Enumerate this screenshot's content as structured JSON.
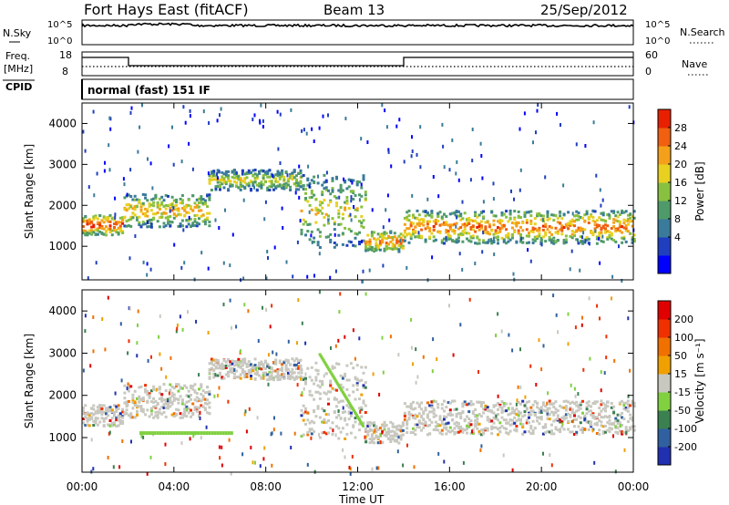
{
  "header": {
    "title": "Fort Hays East (fitACF)",
    "beam": "Beam 13",
    "date": "25/Sep/2012"
  },
  "status_panels": {
    "nsky_label": "N.Sky",
    "nsearch_label": "N.Search",
    "nsky_ticks": [
      "10^5",
      "10^0"
    ],
    "nsearch_ticks": [
      "10^5",
      "10^0"
    ],
    "freq_label": "Freq.",
    "freq_unit": "[MHz]",
    "freq_ticks": [
      "18",
      "8"
    ],
    "nave_label": "Nave",
    "nave_ticks": [
      "60",
      "0"
    ],
    "cpid_label": "CPID",
    "cpid_text": "normal (fast) 151 IF"
  },
  "chart_data": [
    {
      "type": "heatmap",
      "name": "power",
      "ylabel": "Slant Range [km]",
      "xlabel": "Time UT",
      "x_ticks": [
        "00:00",
        "04:00",
        "08:00",
        "12:00",
        "16:00",
        "20:00",
        "00:00"
      ],
      "x_range_hours": [
        0,
        24
      ],
      "y_ticks": [
        1000,
        2000,
        3000,
        4000
      ],
      "ylim": [
        180,
        4500
      ],
      "colorbar_label": "Power [dB]",
      "colorbar_ticks": [
        "28",
        "24",
        "20",
        "16",
        "12",
        "8",
        "4"
      ],
      "colors": [
        "#0000ff",
        "#1f3fbf",
        "#3a7a9a",
        "#4f9a6a",
        "#88c040",
        "#e8d020",
        "#f5a01a",
        "#f06010",
        "#e82000"
      ],
      "bands": [
        {
          "t": [
            0,
            1.8
          ],
          "r": [
            1300,
            1800
          ],
          "level": 8
        },
        {
          "t": [
            1.8,
            5.5
          ],
          "r": [
            1500,
            2300
          ],
          "level": 6
        },
        {
          "t": [
            5.5,
            9.5
          ],
          "r": [
            2400,
            2900
          ],
          "level": 5
        },
        {
          "t": [
            9.5,
            12.3
          ],
          "r": [
            1000,
            2800
          ],
          "level": 5
        },
        {
          "t": [
            12.3,
            14
          ],
          "r": [
            900,
            1400
          ],
          "level": 7
        },
        {
          "t": [
            14,
            24
          ],
          "r": [
            1100,
            1900
          ],
          "level": 7
        }
      ]
    },
    {
      "type": "heatmap",
      "name": "velocity",
      "ylabel": "Slant Range [km]",
      "xlabel": "Time UT",
      "x_ticks": [
        "00:00",
        "04:00",
        "08:00",
        "12:00",
        "16:00",
        "20:00",
        "00:00"
      ],
      "x_range_hours": [
        0,
        24
      ],
      "y_ticks": [
        1000,
        2000,
        3000,
        4000
      ],
      "ylim": [
        180,
        4500
      ],
      "colorbar_label": "Velocity [m s⁻¹]",
      "colorbar_ticks": [
        "200",
        "100",
        "50",
        "15",
        "-15",
        "-50",
        "-100",
        "-200"
      ],
      "colors": [
        "#2030b0",
        "#3060a0",
        "#3a8050",
        "#80d040",
        "#c8c8c0",
        "#f0a000",
        "#f07000",
        "#f03000",
        "#e00000"
      ]
    }
  ]
}
